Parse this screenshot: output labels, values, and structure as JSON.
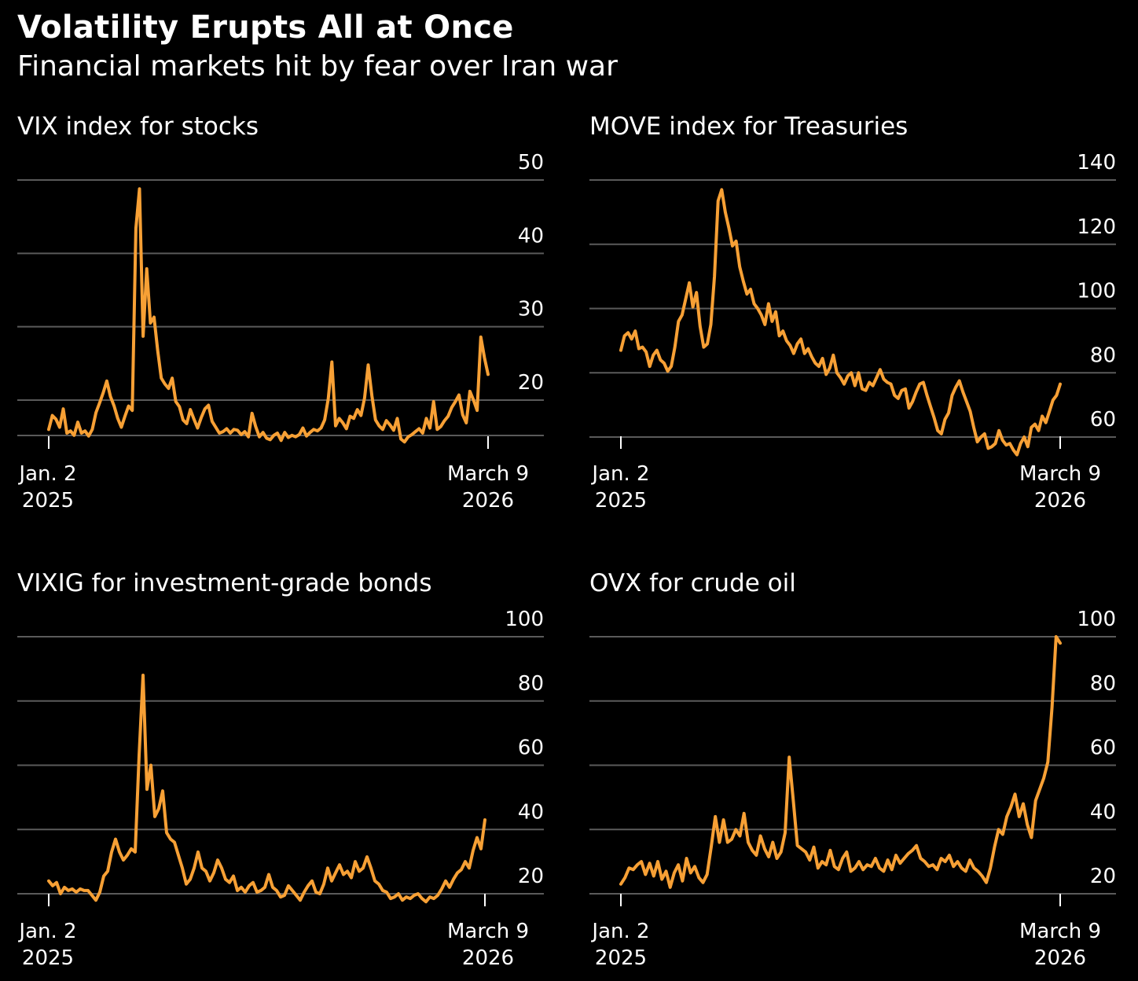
{
  "title": "Volatility Erupts All at Once",
  "subtitle": "Financial markets hit by fear over Iran war",
  "colors": {
    "background": "#000000",
    "line": "#f7a035",
    "grid": "#5a5a5a",
    "text": "#ffffff"
  },
  "chart_data": [
    {
      "type": "line",
      "title": "VIX index for stocks",
      "x_start_label": [
        "Jan. 2",
        "2025"
      ],
      "x_end_label": [
        "March 9",
        "2026"
      ],
      "x_range": [
        "2025-01-02",
        "2026-03-09"
      ],
      "y_ticks": [
        20,
        30,
        40,
        50
      ],
      "ylim": [
        14,
        51
      ],
      "y_axis_side": "right",
      "grid": true,
      "series": [
        {
          "values": [
            16.0,
            17.9,
            17.4,
            16.3,
            18.8,
            15.5,
            15.8,
            15.2,
            17.0,
            15.5,
            15.8,
            15.1,
            16.0,
            18.3,
            19.6,
            21.0,
            22.6,
            20.5,
            19.2,
            17.5,
            16.3,
            17.8,
            19.2,
            18.6,
            43.4,
            48.8,
            28.7,
            37.9,
            30.5,
            31.3,
            26.8,
            23.0,
            22.2,
            21.6,
            23.0,
            19.8,
            19.1,
            17.3,
            16.8,
            18.7,
            17.4,
            16.2,
            17.6,
            18.8,
            19.3,
            17.1,
            16.3,
            15.5,
            15.7,
            16.1,
            15.5,
            16.0,
            15.9,
            15.3,
            15.7,
            15.0,
            18.2,
            16.4,
            15.0,
            15.6,
            14.8,
            14.6,
            15.2,
            15.5,
            14.5,
            15.6,
            14.9,
            15.2,
            15.0,
            15.3,
            16.2,
            15.1,
            15.6,
            16.0,
            15.8,
            16.2,
            17.3,
            20.2,
            25.2,
            16.5,
            17.5,
            16.9,
            16.1,
            17.8,
            17.5,
            18.7,
            17.9,
            20.3,
            24.8,
            20.6,
            17.3,
            16.5,
            16.0,
            17.2,
            16.6,
            15.9,
            17.5,
            14.7,
            14.3,
            15.0,
            15.3,
            15.7,
            16.1,
            15.5,
            17.5,
            16.2,
            19.8,
            16.0,
            16.4,
            17.2,
            17.8,
            19.0,
            19.8,
            20.7,
            18.0,
            16.9,
            21.2,
            20.0,
            18.6,
            28.6,
            25.8,
            23.5
          ]
        }
      ]
    },
    {
      "type": "line",
      "title": "MOVE index for Treasuries",
      "x_start_label": [
        "Jan. 2",
        "2025"
      ],
      "x_end_label": [
        "March 9",
        "2026"
      ],
      "x_range": [
        "2025-01-02",
        "2026-03-09"
      ],
      "y_ticks": [
        60,
        80,
        100,
        120,
        140
      ],
      "ylim": [
        55,
        141
      ],
      "y_axis_side": "right",
      "grid": true,
      "series": [
        {
          "values": [
            87.0,
            91.5,
            92.5,
            90.5,
            93.0,
            87.5,
            88.0,
            86.5,
            82.0,
            85.5,
            87.0,
            84.0,
            83.0,
            80.5,
            82.0,
            88.0,
            96.0,
            98.0,
            103.0,
            108.0,
            100.5,
            105.0,
            94.5,
            88.0,
            89.0,
            95.0,
            110.0,
            133.5,
            137.0,
            130.0,
            125.0,
            119.5,
            121.0,
            113.0,
            108.5,
            104.5,
            106.0,
            101.5,
            100.0,
            98.0,
            95.0,
            101.5,
            96.0,
            99.0,
            91.5,
            93.0,
            90.0,
            88.5,
            86.0,
            89.0,
            90.5,
            86.0,
            87.5,
            85.0,
            83.0,
            82.0,
            84.5,
            79.5,
            81.5,
            85.5,
            80.0,
            78.5,
            76.5,
            79.0,
            80.0,
            76.0,
            80.0,
            75.0,
            74.5,
            77.0,
            76.0,
            78.5,
            81.0,
            78.0,
            77.0,
            76.5,
            73.0,
            72.0,
            74.5,
            75.0,
            69.0,
            71.0,
            74.0,
            76.5,
            77.0,
            73.0,
            69.5,
            66.0,
            62.0,
            61.0,
            65.5,
            67.5,
            73.0,
            75.5,
            77.5,
            74.0,
            71.0,
            68.0,
            63.0,
            58.5,
            60.0,
            61.0,
            56.5,
            57.0,
            58.0,
            62.0,
            59.0,
            57.5,
            58.0,
            56.0,
            54.5,
            58.0,
            60.0,
            57.0,
            63.0,
            64.0,
            62.0,
            66.5,
            64.5,
            68.0,
            71.5,
            73.0,
            76.5
          ]
        }
      ]
    },
    {
      "type": "line",
      "title": "VIXIG for investment-grade bonds",
      "x_start_label": [
        "Jan. 2",
        "2025"
      ],
      "x_end_label": [
        "March 9",
        "2026"
      ],
      "x_range": [
        "2025-01-02",
        "2026-03-09"
      ],
      "y_ticks": [
        20,
        40,
        60,
        80,
        100
      ],
      "ylim": [
        15,
        101
      ],
      "y_axis_side": "right",
      "grid": true,
      "series": [
        {
          "values": [
            24.0,
            22.5,
            23.5,
            20.0,
            22.0,
            21.0,
            21.5,
            20.5,
            21.5,
            21.0,
            21.0,
            19.5,
            18.0,
            20.5,
            25.5,
            27.0,
            33.0,
            37.0,
            33.0,
            30.5,
            32.0,
            34.0,
            33.0,
            63.0,
            88.0,
            52.5,
            60.0,
            44.0,
            46.5,
            52.0,
            39.0,
            37.0,
            36.0,
            32.0,
            28.0,
            23.0,
            24.5,
            28.0,
            33.0,
            28.0,
            27.0,
            24.0,
            26.5,
            30.5,
            28.0,
            24.5,
            23.5,
            25.5,
            21.0,
            22.0,
            20.5,
            22.5,
            23.5,
            20.5,
            21.0,
            22.0,
            26.0,
            22.0,
            21.0,
            19.0,
            19.5,
            22.5,
            21.0,
            19.5,
            18.0,
            20.5,
            22.5,
            24.0,
            20.5,
            20.0,
            23.0,
            28.0,
            24.0,
            26.5,
            29.0,
            26.0,
            27.0,
            25.0,
            30.0,
            27.0,
            28.0,
            31.5,
            28.0,
            24.0,
            23.0,
            21.0,
            20.5,
            18.5,
            19.0,
            20.0,
            18.0,
            19.0,
            18.5,
            19.5,
            20.0,
            18.5,
            17.5,
            19.0,
            18.5,
            19.5,
            21.5,
            24.0,
            22.0,
            24.5,
            26.5,
            27.5,
            30.0,
            28.0,
            33.5,
            37.5,
            34.0,
            43.0
          ]
        }
      ]
    },
    {
      "type": "line",
      "title": "OVX for crude oil",
      "x_start_label": [
        "Jan. 2",
        "2025"
      ],
      "x_end_label": [
        "March 9",
        "2026"
      ],
      "x_range": [
        "2025-01-02",
        "2026-03-09"
      ],
      "y_ticks": [
        20,
        40,
        60,
        80,
        100
      ],
      "ylim": [
        15,
        101
      ],
      "y_axis_side": "right",
      "grid": true,
      "series": [
        {
          "values": [
            23.0,
            25.0,
            28.0,
            27.5,
            29.0,
            30.0,
            26.0,
            29.5,
            25.5,
            30.0,
            24.5,
            27.0,
            22.0,
            26.5,
            29.0,
            24.0,
            31.0,
            26.5,
            28.5,
            25.0,
            23.5,
            26.0,
            34.5,
            44.0,
            36.0,
            43.0,
            36.0,
            37.0,
            40.0,
            38.0,
            45.0,
            36.0,
            33.5,
            32.0,
            38.0,
            34.0,
            31.5,
            36.0,
            31.0,
            33.0,
            39.0,
            62.5,
            49.0,
            35.0,
            34.0,
            33.0,
            30.5,
            34.5,
            28.0,
            30.0,
            29.0,
            33.5,
            28.5,
            27.5,
            31.0,
            33.0,
            27.0,
            28.0,
            30.0,
            27.5,
            29.0,
            28.5,
            31.0,
            28.0,
            27.0,
            30.5,
            27.5,
            32.0,
            29.5,
            31.0,
            32.5,
            33.5,
            35.0,
            31.0,
            30.0,
            28.5,
            29.0,
            27.5,
            31.0,
            30.0,
            32.0,
            28.5,
            30.0,
            28.0,
            27.0,
            30.5,
            28.0,
            27.0,
            25.5,
            23.5,
            28.0,
            34.5,
            40.0,
            38.5,
            44.0,
            47.0,
            51.0,
            44.0,
            48.0,
            41.5,
            37.5,
            49.0,
            52.5,
            56.0,
            61.0,
            78.0,
            100.0,
            98.0
          ]
        }
      ]
    }
  ]
}
